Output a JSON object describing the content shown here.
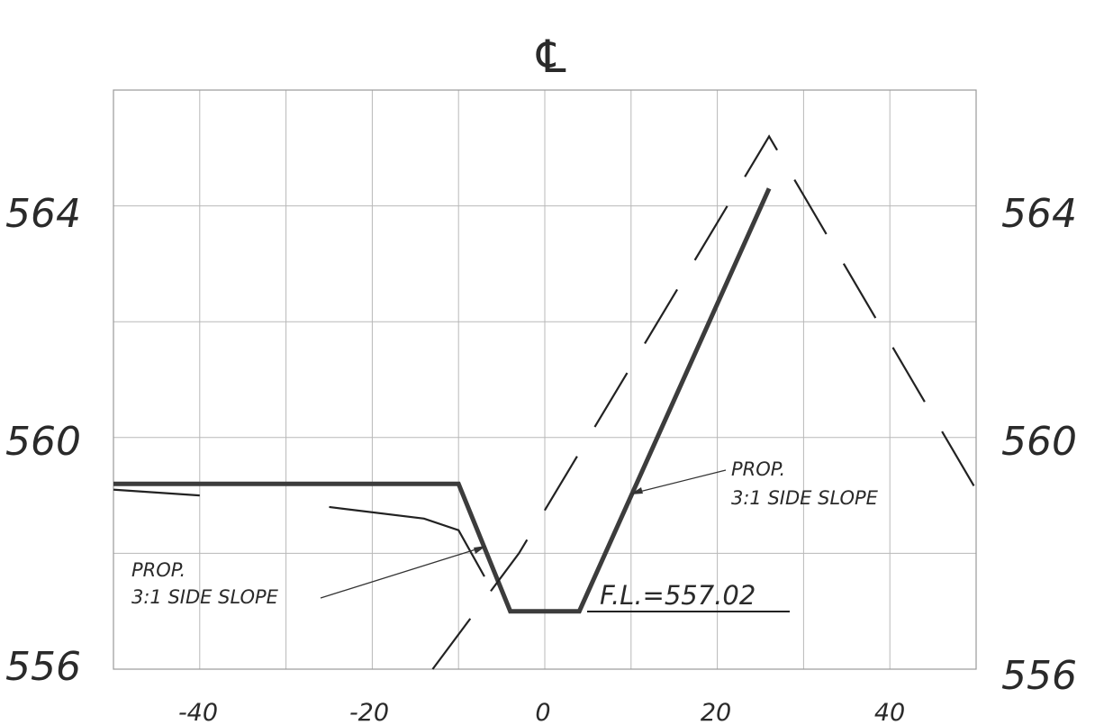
{
  "centerline_symbol": "℄",
  "left_elevation_labels": [
    "564",
    "560",
    "556"
  ],
  "right_elevation_labels": [
    "564",
    "560",
    "556"
  ],
  "x_tick_labels": [
    "-40",
    "-20",
    "0",
    "20",
    "40"
  ],
  "annotations": {
    "right_slope": {
      "line1": "PROP.",
      "line2": "3:1 SIDE SLOPE"
    },
    "left_slope": {
      "line1": "PROP.",
      "line2": "3:1 SIDE SLOPE"
    },
    "flow_line": "F.L.=557.02"
  },
  "chart_data": {
    "type": "line",
    "x_ticks": [
      -40,
      -20,
      0,
      20,
      40
    ],
    "y_ticks": [
      556,
      560,
      564
    ],
    "xlim": [
      -50,
      50
    ],
    "ylim": [
      556,
      566
    ],
    "grid": true,
    "series": [
      {
        "style": "proposed-thick",
        "points": [
          [
            -50,
            559.2
          ],
          [
            -10,
            559.2
          ],
          [
            -4,
            557.0
          ],
          [
            4,
            557.0
          ],
          [
            26,
            564.3
          ]
        ]
      },
      {
        "style": "existing-thin",
        "points": [
          [
            -50,
            559.1
          ],
          [
            -40,
            559.0
          ]
        ]
      },
      {
        "style": "existing-thin",
        "points": [
          [
            -25,
            558.8
          ],
          [
            -14,
            558.6
          ],
          [
            -10,
            558.4
          ],
          [
            -7,
            557.6
          ]
        ]
      },
      {
        "style": "dashed",
        "points": [
          [
            -13,
            556.0
          ],
          [
            -3,
            558.0
          ],
          [
            26,
            565.2
          ],
          [
            50,
            559.1
          ]
        ]
      }
    ],
    "flow_line": 557.02
  }
}
